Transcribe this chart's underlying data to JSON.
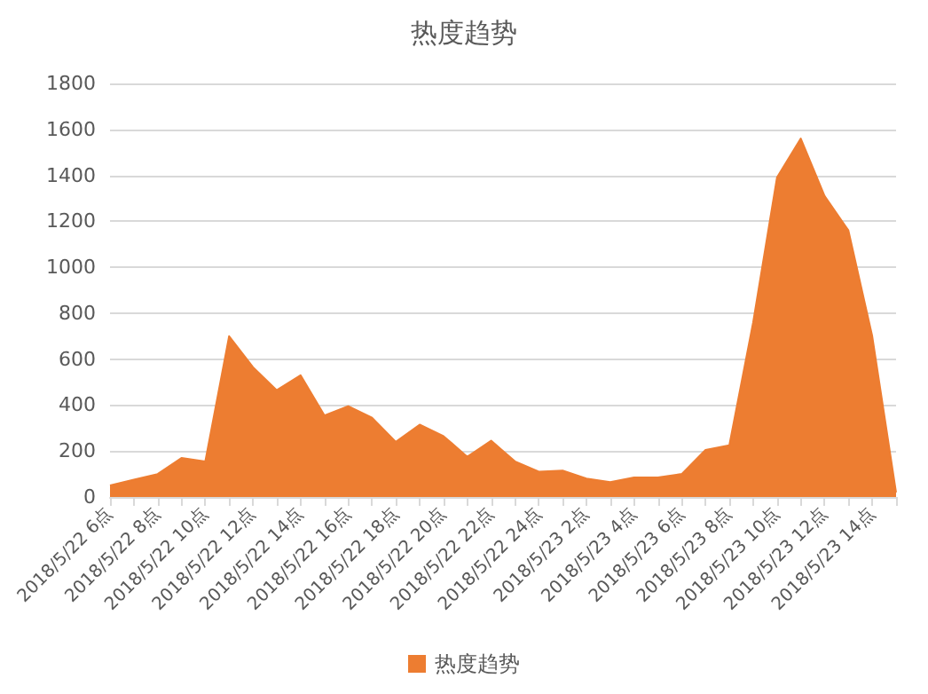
{
  "chart_data": {
    "type": "area",
    "title": "热度趋势",
    "categories": [
      "2018/5/22 6点",
      null,
      "2018/5/22 8点",
      null,
      "2018/5/22 10点",
      null,
      "2018/5/22 12点",
      null,
      "2018/5/22 14点",
      null,
      "2018/5/22 16点",
      null,
      "2018/5/22 18点",
      null,
      "2018/5/22 20点",
      null,
      "2018/5/22 22点",
      null,
      "2018/5/22 24点",
      null,
      "2018/5/23 2点",
      null,
      "2018/5/23 4点",
      null,
      "2018/5/23 6点",
      null,
      "2018/5/23 8点",
      null,
      "2018/5/23 10点",
      null,
      "2018/5/23 12点",
      null,
      "2018/5/23 14点",
      null
    ],
    "series": [
      {
        "name": "热度趋势",
        "color": "#ed7d31",
        "values": [
          50,
          75,
          100,
          170,
          155,
          700,
          565,
          465,
          530,
          355,
          395,
          345,
          240,
          315,
          265,
          175,
          245,
          155,
          110,
          115,
          80,
          65,
          85,
          85,
          100,
          205,
          225,
          760,
          1390,
          1560,
          1310,
          1160,
          700,
          20
        ]
      }
    ],
    "ylim": [
      0,
      1800
    ],
    "yticks": [
      0,
      200,
      400,
      600,
      800,
      1000,
      1200,
      1400,
      1600,
      1800
    ],
    "grid": "y",
    "legend": "bottom"
  }
}
